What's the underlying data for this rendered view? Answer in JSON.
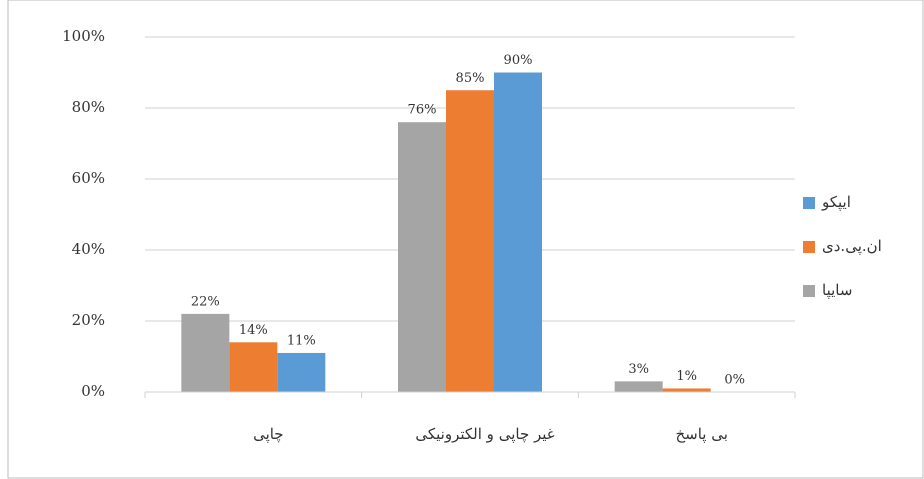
{
  "chart_data": {
    "type": "bar",
    "categories": [
      "چاپی",
      "غیر چاپی و الکترونیکی",
      "بی پاسخ"
    ],
    "series": [
      {
        "name": "سایپا",
        "color": "#a5a5a5",
        "values": [
          22,
          76,
          3
        ],
        "value_labels": [
          "22%",
          "76%",
          "3%"
        ]
      },
      {
        "name": "ان.پی.دی",
        "color": "#ed7d31",
        "values": [
          14,
          85,
          1
        ],
        "value_labels": [
          "14%",
          "85%",
          "1%"
        ]
      },
      {
        "name": "ایپکو",
        "color": "#5b9bd5",
        "values": [
          11,
          90,
          0
        ],
        "value_labels": [
          "11%",
          "90%",
          "0%"
        ]
      }
    ],
    "ylim": [
      0,
      100
    ],
    "yticks": [
      {
        "value": 0,
        "label": "0%"
      },
      {
        "value": 20,
        "label": "20%"
      },
      {
        "value": 40,
        "label": "40%"
      },
      {
        "value": 60,
        "label": "60%"
      },
      {
        "value": 80,
        "label": "80%"
      },
      {
        "value": 100,
        "label": "100%"
      }
    ],
    "grid": true,
    "legend": "right"
  }
}
